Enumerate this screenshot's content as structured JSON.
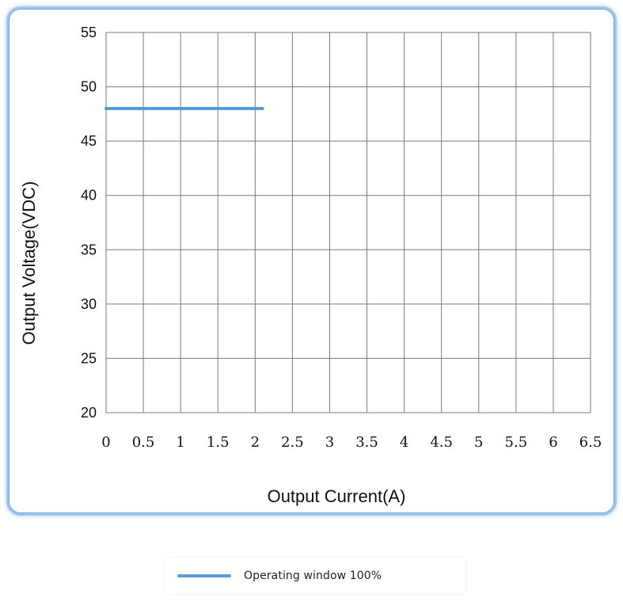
{
  "chart_data": {
    "type": "line",
    "title": "",
    "xlabel": "Output Current(A)",
    "ylabel": "Output Voltage(VDC)",
    "xlim": [
      0,
      6.5
    ],
    "ylim": [
      20,
      55
    ],
    "x_ticks": [
      "0",
      "0.5",
      "1",
      "1.5",
      "2",
      "2.5",
      "3",
      "3.5",
      "4",
      "4.5",
      "5",
      "5.5",
      "6",
      "6.5"
    ],
    "y_ticks": [
      "20",
      "25",
      "30",
      "35",
      "40",
      "45",
      "50",
      "55"
    ],
    "grid": true,
    "legend_position": "bottom-center",
    "series": [
      {
        "name": "Operating window 100%",
        "color": "#5b9bd5",
        "x": [
          0,
          2.1
        ],
        "y": [
          48,
          48
        ]
      }
    ]
  }
}
